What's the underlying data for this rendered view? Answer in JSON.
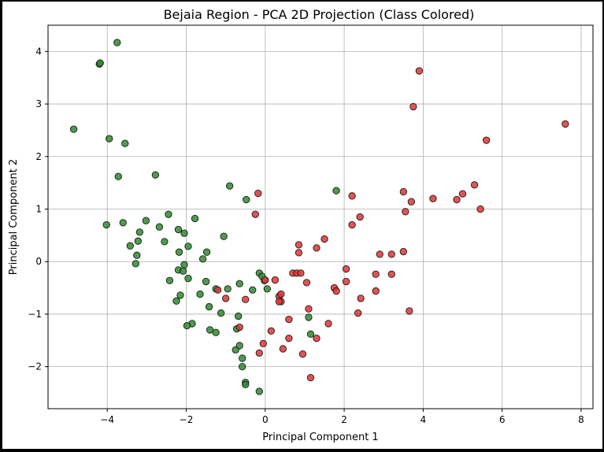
{
  "chart_data": {
    "type": "scatter",
    "title": "Bejaia Region - PCA 2D Projection (Class Colored)",
    "xlabel": "Principal Component 1",
    "ylabel": "Principal Component 2",
    "xlim": [
      -5.5,
      8.3
    ],
    "ylim": [
      -2.8,
      4.5
    ],
    "xticks": [
      -4,
      -2,
      0,
      2,
      4,
      6,
      8
    ],
    "yticks": [
      -2,
      -1,
      0,
      1,
      2,
      3,
      4
    ],
    "xtick_labels": [
      "−4",
      "−2",
      "0",
      "2",
      "4",
      "6",
      "8"
    ],
    "ytick_labels": [
      "−2",
      "−1",
      "0",
      "1",
      "2",
      "3",
      "4"
    ],
    "grid": true,
    "legend": "none",
    "colors": {
      "green": "#2e8b2e",
      "red": "#e03434",
      "edge": "#1a1a1a",
      "grid": "#b0b0b0"
    },
    "series": [
      {
        "color": "green",
        "points": [
          [
            -4.2,
            3.76
          ],
          [
            -4.18,
            3.78
          ],
          [
            -3.75,
            4.17
          ],
          [
            -4.85,
            2.52
          ],
          [
            -3.95,
            2.34
          ],
          [
            -3.55,
            2.25
          ],
          [
            -3.72,
            1.62
          ],
          [
            -2.78,
            1.65
          ],
          [
            -4.02,
            0.7
          ],
          [
            -3.6,
            0.74
          ],
          [
            -3.02,
            0.78
          ],
          [
            -2.68,
            0.66
          ],
          [
            -3.18,
            0.56
          ],
          [
            -2.45,
            0.9
          ],
          [
            -2.2,
            0.61
          ],
          [
            -2.05,
            0.54
          ],
          [
            -1.95,
            0.29
          ],
          [
            -1.78,
            0.82
          ],
          [
            -3.22,
            0.39
          ],
          [
            -3.42,
            0.3
          ],
          [
            -3.25,
            0.12
          ],
          [
            -3.28,
            -0.04
          ],
          [
            -2.55,
            0.38
          ],
          [
            -2.18,
            0.18
          ],
          [
            -1.48,
            0.18
          ],
          [
            -1.58,
            0.05
          ],
          [
            -1.05,
            0.48
          ],
          [
            -0.9,
            1.44
          ],
          [
            -0.48,
            1.18
          ],
          [
            -2.05,
            -0.06
          ],
          [
            -2.2,
            -0.16
          ],
          [
            -2.08,
            -0.18
          ],
          [
            -2.42,
            -0.36
          ],
          [
            -1.95,
            -0.32
          ],
          [
            -1.5,
            -0.38
          ],
          [
            -1.25,
            -0.52
          ],
          [
            -0.95,
            -0.52
          ],
          [
            -0.65,
            -0.42
          ],
          [
            -0.32,
            -0.54
          ],
          [
            -0.15,
            -0.22
          ],
          [
            -0.08,
            -0.28
          ],
          [
            -0.02,
            -0.36
          ],
          [
            0.05,
            -0.52
          ],
          [
            -2.15,
            -0.64
          ],
          [
            -2.25,
            -0.75
          ],
          [
            -1.65,
            -0.62
          ],
          [
            -1.42,
            -0.86
          ],
          [
            -1.85,
            -1.18
          ],
          [
            -1.98,
            -1.22
          ],
          [
            -1.4,
            -1.3
          ],
          [
            -1.25,
            -1.35
          ],
          [
            -1.12,
            -0.98
          ],
          [
            -0.68,
            -1.04
          ],
          [
            -0.72,
            -1.28
          ],
          [
            -0.75,
            -1.68
          ],
          [
            -0.65,
            -1.6
          ],
          [
            -0.58,
            -1.84
          ],
          [
            -0.58,
            -2.0
          ],
          [
            -0.5,
            -2.3
          ],
          [
            -0.5,
            -2.34
          ],
          [
            -0.15,
            -2.47
          ],
          [
            1.8,
            1.35
          ],
          [
            1.1,
            -1.06
          ],
          [
            1.15,
            -1.38
          ]
        ]
      },
      {
        "color": "red",
        "points": [
          [
            3.9,
            3.63
          ],
          [
            3.75,
            2.95
          ],
          [
            7.6,
            2.62
          ],
          [
            5.6,
            2.31
          ],
          [
            -0.18,
            1.3
          ],
          [
            -0.25,
            0.9
          ],
          [
            2.2,
            1.25
          ],
          [
            2.2,
            0.7
          ],
          [
            2.4,
            0.85
          ],
          [
            3.5,
            1.33
          ],
          [
            3.55,
            0.95
          ],
          [
            3.7,
            1.14
          ],
          [
            4.25,
            1.2
          ],
          [
            4.85,
            1.18
          ],
          [
            5.0,
            1.29
          ],
          [
            5.3,
            1.46
          ],
          [
            5.45,
            1.0
          ],
          [
            1.5,
            0.43
          ],
          [
            1.3,
            0.26
          ],
          [
            0.85,
            0.32
          ],
          [
            0.85,
            0.17
          ],
          [
            2.9,
            0.14
          ],
          [
            3.2,
            0.14
          ],
          [
            3.5,
            0.19
          ],
          [
            2.05,
            -0.14
          ],
          [
            2.8,
            -0.24
          ],
          [
            3.2,
            -0.24
          ],
          [
            2.05,
            -0.38
          ],
          [
            1.75,
            -0.5
          ],
          [
            1.8,
            -0.56
          ],
          [
            2.8,
            -0.56
          ],
          [
            0.7,
            -0.22
          ],
          [
            0.8,
            -0.22
          ],
          [
            0.9,
            -0.22
          ],
          [
            1.05,
            -0.4
          ],
          [
            0.25,
            -0.35
          ],
          [
            0.35,
            -0.66
          ],
          [
            0.4,
            -0.62
          ],
          [
            0.4,
            -0.76
          ],
          [
            0.35,
            -0.76
          ],
          [
            0.0,
            -0.35
          ],
          [
            -0.5,
            -0.72
          ],
          [
            -1.0,
            -0.7
          ],
          [
            -1.2,
            -0.54
          ],
          [
            2.42,
            -0.7
          ],
          [
            2.35,
            -0.98
          ],
          [
            3.65,
            -0.94
          ],
          [
            1.6,
            -1.18
          ],
          [
            1.1,
            -0.9
          ],
          [
            0.6,
            -1.1
          ],
          [
            0.15,
            -1.32
          ],
          [
            0.45,
            -1.66
          ],
          [
            0.6,
            -1.46
          ],
          [
            0.95,
            -1.76
          ],
          [
            1.3,
            -1.46
          ],
          [
            -0.65,
            -1.25
          ],
          [
            -0.05,
            -1.56
          ],
          [
            -0.15,
            -1.74
          ],
          [
            1.15,
            -2.21
          ]
        ]
      }
    ]
  }
}
